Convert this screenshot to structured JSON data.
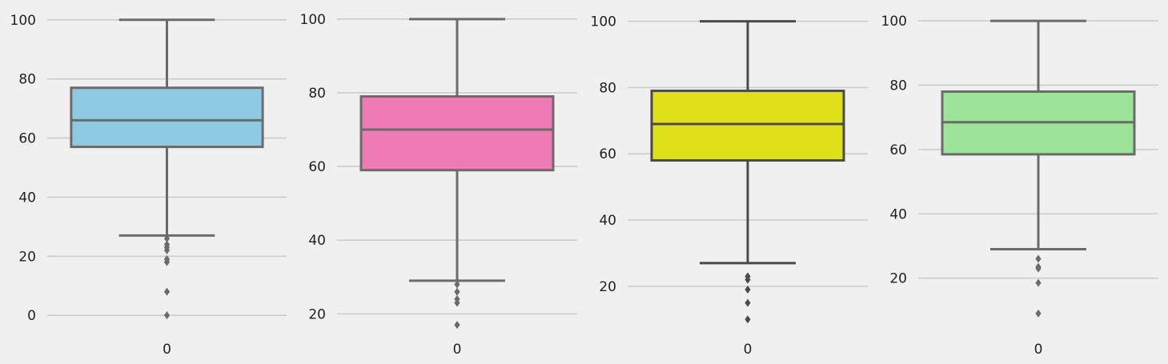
{
  "chart_data": [
    {
      "type": "box",
      "categories": [
        "0"
      ],
      "ylim": [
        -7,
        104
      ],
      "yticks": [
        0,
        20,
        40,
        60,
        80,
        100
      ],
      "box": {
        "whisker_low": 27,
        "q1": 57,
        "median": 66,
        "q3": 77,
        "whisker_high": 100
      },
      "outliers": [
        26,
        24,
        23,
        22,
        19,
        18,
        8,
        0
      ],
      "color": "#8ecae2",
      "line_color": "#6b6b6b",
      "grid": true
    },
    {
      "type": "box",
      "categories": [
        "0"
      ],
      "ylim": [
        14,
        103
      ],
      "yticks": [
        20,
        40,
        60,
        80,
        100
      ],
      "box": {
        "whisker_low": 29,
        "q1": 59,
        "median": 70,
        "q3": 79,
        "whisker_high": 100
      },
      "outliers": [
        28,
        26,
        24,
        23,
        17
      ],
      "color": "#ee7bb5",
      "line_color": "#6b6b6b",
      "grid": true
    },
    {
      "type": "box",
      "categories": [
        "0"
      ],
      "ylim": [
        5,
        104
      ],
      "yticks": [
        20,
        40,
        60,
        80,
        100
      ],
      "box": {
        "whisker_low": 27,
        "q1": 58,
        "median": 69,
        "q3": 79,
        "whisker_high": 100
      },
      "outliers": [
        23,
        22,
        19,
        15,
        10
      ],
      "color": "#e0e01a",
      "line_color": "#4a4a4a",
      "grid": true
    },
    {
      "type": "box",
      "categories": [
        "0"
      ],
      "ylim": [
        2,
        104
      ],
      "yticks": [
        20,
        40,
        60,
        80,
        100
      ],
      "box": {
        "whisker_low": 29,
        "q1": 58.5,
        "median": 68.5,
        "q3": 78,
        "whisker_high": 100
      },
      "outliers": [
        26,
        23.5,
        23,
        18.5,
        9
      ],
      "color": "#9de49a",
      "line_color": "#6b6b6b",
      "grid": true
    }
  ]
}
